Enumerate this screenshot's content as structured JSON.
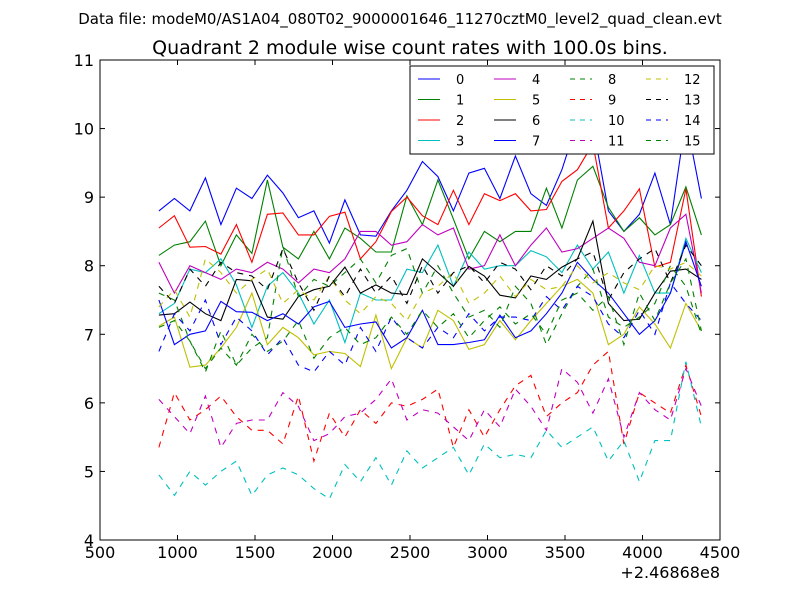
{
  "header": {
    "data_file": "Data file: modeM0/AS1A04_080T02_9000001646_11270cztM0_level2_quad_clean.evt"
  },
  "chart_data": {
    "type": "line",
    "title": "Quadrant 2 module wise count rates with 100.0s bins.",
    "xlabel": "",
    "ylabel": "",
    "x_offset_label": "+2.46868e8",
    "xlim": [
      500,
      4500
    ],
    "ylim": [
      4,
      11
    ],
    "xticks": [
      500,
      1000,
      1500,
      2000,
      2500,
      3000,
      3500,
      4000,
      4500
    ],
    "yticks": [
      4,
      5,
      6,
      7,
      8,
      9,
      10,
      11
    ],
    "legend_position": "top-right",
    "x": [
      880,
      980,
      1080,
      1180,
      1280,
      1380,
      1480,
      1580,
      1680,
      1780,
      1880,
      1980,
      2080,
      2180,
      2280,
      2380,
      2480,
      2580,
      2680,
      2780,
      2880,
      2980,
      3080,
      3180,
      3280,
      3380,
      3480,
      3580,
      3680,
      3780,
      3880,
      3980,
      4080,
      4180,
      4280,
      4380
    ],
    "series": [
      {
        "name": "0",
        "color": "#0000ff",
        "dash": "solid",
        "values": [
          8.8,
          8.98,
          8.8,
          9.28,
          8.6,
          9.13,
          8.98,
          9.32,
          9.06,
          8.7,
          8.8,
          8.33,
          8.96,
          8.45,
          8.43,
          8.8,
          9.1,
          9.52,
          9.3,
          8.8,
          9.35,
          9.42,
          8.98,
          9.6,
          9.05,
          8.88,
          9.4,
          10.1,
          10.05,
          8.8,
          8.5,
          8.75,
          9.35,
          8.6,
          10.15,
          8.98
        ]
      },
      {
        "name": "1",
        "color": "#008000",
        "dash": "solid",
        "values": [
          8.15,
          8.3,
          8.35,
          8.65,
          8.0,
          8.45,
          8.18,
          9.25,
          8.27,
          8.1,
          8.5,
          8.1,
          8.55,
          8.4,
          8.2,
          8.2,
          9.02,
          8.6,
          9.25,
          8.68,
          8.1,
          8.5,
          8.35,
          8.5,
          8.5,
          9.13,
          8.55,
          9.25,
          9.45,
          8.85,
          8.5,
          8.7,
          8.45,
          8.6,
          9.15,
          8.45
        ]
      },
      {
        "name": "2",
        "color": "#ff0000",
        "dash": "solid",
        "values": [
          8.55,
          8.73,
          8.27,
          8.28,
          8.17,
          8.6,
          8.05,
          8.75,
          8.77,
          8.45,
          8.45,
          8.72,
          8.78,
          8.1,
          8.35,
          8.79,
          9.0,
          8.73,
          8.6,
          9.1,
          8.6,
          9.05,
          8.95,
          9.05,
          8.8,
          8.82,
          9.23,
          9.4,
          9.78,
          8.55,
          8.8,
          9.12,
          7.98,
          8.05,
          9.12,
          7.55
        ]
      },
      {
        "name": "3",
        "color": "#00bfbf",
        "dash": "solid",
        "values": [
          7.3,
          7.45,
          7.95,
          7.9,
          8.1,
          7.72,
          7.1,
          7.7,
          7.9,
          7.6,
          7.15,
          7.5,
          6.88,
          7.6,
          7.5,
          7.5,
          7.95,
          7.9,
          8.3,
          7.7,
          8.2,
          7.95,
          8.0,
          8.0,
          8.22,
          8.13,
          7.9,
          8.3,
          7.95,
          8.2,
          7.6,
          8.15,
          7.6,
          7.6,
          8.4,
          7.9
        ]
      },
      {
        "name": "4",
        "color": "#bf00bf",
        "dash": "solid",
        "values": [
          8.05,
          7.6,
          8.0,
          7.9,
          7.8,
          7.95,
          7.9,
          8.05,
          7.95,
          7.75,
          7.95,
          7.9,
          8.1,
          8.5,
          8.5,
          8.3,
          8.35,
          8.6,
          8.45,
          8.55,
          7.95,
          8.0,
          8.45,
          8.0,
          8.3,
          8.55,
          8.2,
          8.25,
          8.4,
          8.55,
          8.4,
          8.05,
          8.0,
          8.55,
          8.75,
          7.6
        ]
      },
      {
        "name": "5",
        "color": "#bfbf00",
        "dash": "solid",
        "values": [
          7.12,
          7.25,
          6.52,
          6.55,
          6.8,
          7.1,
          7.6,
          6.85,
          7.1,
          6.95,
          6.7,
          6.75,
          6.72,
          6.53,
          7.28,
          6.5,
          6.95,
          6.8,
          7.35,
          7.2,
          6.78,
          6.85,
          7.2,
          6.92,
          7.2,
          7.45,
          7.7,
          7.8,
          7.6,
          6.85,
          7.0,
          7.4,
          7.15,
          6.8,
          7.45,
          7.05
        ]
      },
      {
        "name": "6",
        "color": "#000000",
        "dash": "solid",
        "values": [
          7.28,
          7.3,
          7.47,
          7.3,
          7.2,
          7.8,
          7.78,
          7.25,
          7.22,
          7.55,
          7.65,
          7.7,
          7.98,
          7.6,
          7.72,
          7.6,
          7.58,
          8.1,
          7.9,
          7.7,
          7.99,
          7.85,
          7.57,
          7.53,
          7.85,
          7.8,
          7.98,
          8.1,
          8.65,
          7.45,
          7.2,
          7.22,
          7.6,
          7.92,
          7.95,
          7.8
        ]
      },
      {
        "name": "7",
        "color": "#0000ff",
        "dash": "solid",
        "values": [
          7.5,
          6.85,
          7.0,
          7.05,
          7.48,
          7.33,
          7.32,
          7.2,
          7.3,
          7.15,
          7.4,
          7.48,
          7.1,
          7.15,
          7.18,
          6.8,
          6.95,
          7.35,
          6.85,
          6.85,
          6.88,
          6.92,
          7.28,
          6.95,
          7.05,
          7.3,
          7.6,
          8.05,
          7.8,
          7.6,
          7.3,
          7.0,
          7.2,
          7.6,
          8.35,
          7.7
        ]
      },
      {
        "name": "8",
        "color": "#008000",
        "dash": "dashed",
        "values": [
          7.6,
          7.5,
          6.9,
          6.45,
          7.05,
          6.55,
          6.8,
          6.95,
          8.28,
          7.55,
          7.8,
          7.7,
          7.9,
          8.1,
          7.75,
          8.15,
          8.25,
          7.6,
          8.0,
          7.6,
          7.25,
          7.35,
          7.1,
          7.7,
          7.45,
          6.85,
          7.3,
          7.7,
          7.95,
          7.25,
          7.1,
          7.25,
          7.45,
          8.0,
          7.7,
          7.0
        ]
      },
      {
        "name": "9",
        "color": "#ff0000",
        "dash": "dashed",
        "values": [
          5.35,
          6.15,
          5.75,
          5.9,
          6.1,
          5.8,
          5.6,
          5.6,
          5.4,
          6.1,
          5.15,
          5.85,
          5.5,
          5.9,
          5.7,
          6.0,
          5.95,
          6.05,
          6.2,
          5.35,
          5.9,
          5.5,
          5.9,
          6.25,
          6.4,
          5.8,
          6.0,
          6.15,
          6.55,
          6.75,
          5.4,
          6.15,
          6.0,
          5.85,
          6.55,
          5.8
        ]
      },
      {
        "name": "10",
        "color": "#00bfbf",
        "dash": "dashed",
        "values": [
          4.95,
          4.65,
          5.0,
          4.8,
          5.0,
          5.15,
          4.65,
          4.95,
          5.05,
          4.95,
          4.75,
          4.6,
          5.1,
          4.85,
          5.2,
          4.8,
          5.3,
          5.05,
          5.2,
          5.35,
          4.95,
          5.4,
          5.2,
          5.25,
          5.2,
          5.6,
          5.35,
          5.5,
          5.65,
          5.15,
          5.45,
          4.85,
          5.45,
          5.45,
          6.6,
          5.65
        ]
      },
      {
        "name": "11",
        "color": "#bf00bf",
        "dash": "dashed",
        "values": [
          6.05,
          5.8,
          5.55,
          6.1,
          5.35,
          5.7,
          5.75,
          5.75,
          6.15,
          5.95,
          5.45,
          5.55,
          5.8,
          5.85,
          6.05,
          6.35,
          5.75,
          5.9,
          5.85,
          5.65,
          5.45,
          5.9,
          5.65,
          6.2,
          5.95,
          5.6,
          6.5,
          6.3,
          5.85,
          6.35,
          5.5,
          6.15,
          5.9,
          5.75,
          6.5,
          5.95
        ]
      },
      {
        "name": "12",
        "color": "#bfbf00",
        "dash": "dashed",
        "values": [
          7.4,
          7.65,
          7.25,
          8.1,
          7.9,
          7.6,
          7.8,
          7.95,
          7.45,
          7.65,
          7.5,
          7.85,
          7.5,
          7.3,
          7.55,
          7.45,
          7.2,
          7.6,
          7.7,
          7.9,
          7.45,
          7.6,
          7.85,
          7.55,
          7.8,
          7.65,
          7.7,
          8.0,
          7.75,
          7.9,
          7.75,
          7.65,
          8.0,
          7.95,
          8.05,
          7.85
        ]
      },
      {
        "name": "13",
        "color": "#000000",
        "dash": "dashed",
        "values": [
          7.7,
          7.45,
          7.95,
          7.7,
          8.05,
          7.9,
          7.85,
          7.65,
          8.25,
          7.75,
          7.35,
          7.85,
          7.55,
          7.95,
          7.6,
          7.85,
          7.45,
          8.0,
          7.6,
          7.9,
          8.0,
          7.75,
          8.05,
          7.95,
          7.65,
          8.0,
          7.85,
          8.1,
          8.2,
          7.5,
          7.9,
          8.1,
          8.25,
          7.75,
          8.3,
          8.0
        ]
      },
      {
        "name": "14",
        "color": "#0000ff",
        "dash": "dashed",
        "values": [
          6.75,
          7.3,
          7.05,
          7.5,
          6.85,
          7.25,
          7.05,
          6.7,
          6.95,
          6.55,
          6.45,
          6.75,
          6.55,
          7.1,
          6.75,
          7.25,
          6.95,
          6.8,
          7.1,
          6.95,
          7.3,
          7.05,
          7.25,
          7.25,
          7.2,
          7.55,
          7.35,
          7.7,
          7.55,
          7.15,
          6.95,
          7.35,
          7.0,
          7.75,
          7.45,
          7.2
        ]
      },
      {
        "name": "15",
        "color": "#008000",
        "dash": "dashed",
        "values": [
          7.1,
          7.2,
          6.9,
          6.5,
          6.8,
          6.55,
          7.0,
          6.75,
          6.9,
          7.2,
          6.65,
          6.95,
          7.1,
          6.85,
          6.95,
          7.25,
          7.0,
          7.35,
          7.1,
          7.3,
          6.95,
          7.2,
          7.4,
          7.15,
          7.3,
          7.0,
          7.5,
          7.6,
          7.35,
          7.55,
          6.85,
          7.6,
          7.2,
          7.75,
          8.1,
          7.05
        ]
      }
    ]
  }
}
